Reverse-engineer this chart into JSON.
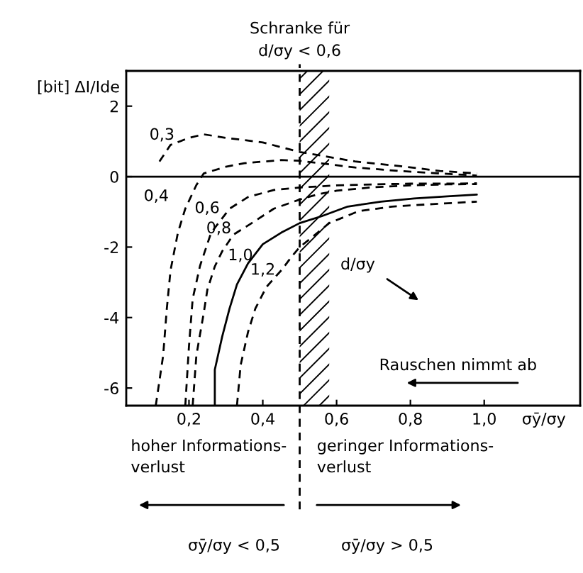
{
  "chart_data": {
    "type": "line",
    "ylabel": "[bit] ΔI/Ide",
    "xlabel": "σȳ/σy",
    "xlim": [
      0.03,
      1.26
    ],
    "ylim": [
      -6.5,
      3
    ],
    "xticks": [
      {
        "value": 0.2,
        "label": "0,2"
      },
      {
        "value": 0.4,
        "label": "0,4"
      },
      {
        "value": 0.6,
        "label": "0,6"
      },
      {
        "value": 0.8,
        "label": "0,8"
      },
      {
        "value": 1.0,
        "label": "1,0"
      }
    ],
    "yticks": [
      -6,
      -4,
      -2,
      0,
      2
    ],
    "series": [
      {
        "name": "0,3",
        "color": "#000000",
        "line_style": "dashed",
        "x": [
          0.12,
          0.15,
          0.2,
          0.24,
          0.3,
          0.4,
          0.5,
          0.65,
          0.77,
          0.88,
          0.98
        ],
        "values": [
          0.43,
          0.9,
          1.1,
          1.2,
          1.1,
          0.97,
          0.7,
          0.43,
          0.3,
          0.16,
          0.09
        ]
      },
      {
        "name": "0,4",
        "color": "#000000",
        "line_style": "dashed",
        "x": [
          0.11,
          0.13,
          0.14,
          0.15,
          0.17,
          0.19,
          0.22,
          0.24,
          0.3,
          0.35,
          0.45,
          0.5,
          0.65,
          0.77,
          0.88,
          0.98
        ],
        "values": [
          -6.5,
          -5.08,
          -3.74,
          -2.66,
          -1.59,
          -0.91,
          -0.24,
          0.09,
          0.28,
          0.38,
          0.47,
          0.45,
          0.26,
          0.16,
          0.09,
          0.03
        ]
      },
      {
        "name": "0,6",
        "color": "#000000",
        "line_style": "dashed",
        "x": [
          0.19,
          0.2,
          0.21,
          0.23,
          0.26,
          0.31,
          0.36,
          0.43,
          0.5,
          0.6,
          0.7,
          0.8,
          0.9,
          0.98
        ],
        "values": [
          -6.5,
          -4.81,
          -3.47,
          -2.53,
          -1.59,
          -0.91,
          -0.58,
          -0.38,
          -0.31,
          -0.25,
          -0.22,
          -0.2,
          -0.2,
          -0.19
        ]
      },
      {
        "name": "0,8",
        "color": "#000000",
        "line_style": "dashed",
        "x": [
          0.21,
          0.22,
          0.24,
          0.25,
          0.27,
          0.29,
          0.32,
          0.37,
          0.43,
          0.5,
          0.55,
          0.6,
          0.7,
          0.8,
          0.9,
          0.98
        ],
        "values": [
          -6.5,
          -5.08,
          -3.87,
          -3.2,
          -2.55,
          -2.12,
          -1.65,
          -1.32,
          -0.91,
          -0.65,
          -0.5,
          -0.4,
          -0.3,
          -0.25,
          -0.22,
          -0.21
        ]
      },
      {
        "name": "1,0",
        "color": "#000000",
        "line_style": "solid",
        "x": [
          0.27,
          0.27,
          0.29,
          0.31,
          0.33,
          0.36,
          0.4,
          0.45,
          0.5,
          0.56,
          0.63,
          0.72,
          0.81,
          0.9,
          0.98
        ],
        "values": [
          -6.5,
          -5.48,
          -4.54,
          -3.74,
          -3.06,
          -2.46,
          -1.92,
          -1.59,
          -1.32,
          -1.12,
          -0.85,
          -0.71,
          -0.62,
          -0.56,
          -0.51
        ]
      },
      {
        "name": "1,2",
        "color": "#000000",
        "line_style": "dashed",
        "x": [
          0.33,
          0.34,
          0.36,
          0.38,
          0.41,
          0.45,
          0.48,
          0.5,
          0.53,
          0.58,
          0.66,
          0.75,
          0.86,
          0.98
        ],
        "values": [
          -6.5,
          -5.35,
          -4.41,
          -3.74,
          -3.13,
          -2.66,
          -2.25,
          -2.0,
          -1.75,
          -1.32,
          -0.98,
          -0.85,
          -0.78,
          -0.71
        ]
      }
    ],
    "ref_lines": [
      {
        "axis": "x",
        "value": 0.5,
        "label": "Schranke für\nd/σy < 0,6",
        "line_style": "dashed",
        "color": "#000000"
      },
      {
        "axis": "y",
        "value": 0,
        "line_style": "solid",
        "color": "#000000"
      }
    ],
    "bands": [
      {
        "axis": "x",
        "from": 0.5,
        "to": 0.58,
        "color": "#000000"
      }
    ],
    "annotations": [
      "d/σy",
      "Rauschen nimmt ab",
      "hoher Informations-\nverlust",
      "geringer Informations-\nverlust",
      "σȳ/σy < 0,5",
      "σȳ/σy > 0,5"
    ]
  }
}
